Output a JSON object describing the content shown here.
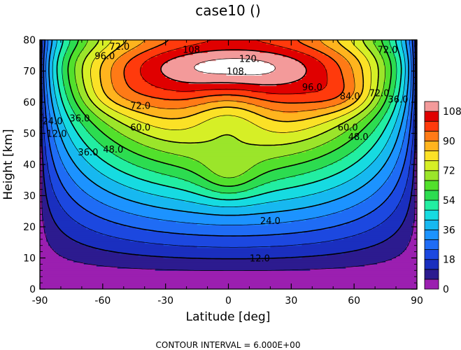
{
  "chart_data": {
    "type": "heatmap",
    "subtype": "filled-contour",
    "title": "case10 ()",
    "xlabel": "Latitude [deg]",
    "ylabel": "Height [km]",
    "xlim": [
      -90,
      90
    ],
    "ylim": [
      0,
      80
    ],
    "x_ticks": [
      "-90",
      "-60",
      "-30",
      "0",
      "30",
      "60",
      "90"
    ],
    "y_ticks": [
      "0",
      "10",
      "20",
      "30",
      "40",
      "50",
      "60",
      "70",
      "80"
    ],
    "contour_interval_text": "CONTOUR INTERVAL = 6.000E+00",
    "colorbar": {
      "min": 0,
      "max": 114,
      "step": 6,
      "tick_labels": [
        "0",
        "18",
        "36",
        "54",
        "72",
        "90",
        "108"
      ],
      "colors": [
        "#9b1fb0",
        "#2c1b8f",
        "#1a2fbf",
        "#1c48e0",
        "#1f6cf5",
        "#1c93ff",
        "#17b8f0",
        "#16dbe1",
        "#22eea2",
        "#2cdc50",
        "#52e02c",
        "#9be52a",
        "#d6ef26",
        "#fbe126",
        "#ffb41e",
        "#ff7a16",
        "#ff3a0c",
        "#e00000",
        "#f39a9a"
      ],
      "overflow_color": "#ffffff"
    },
    "contour_labels": [
      {
        "text": "12.0",
        "lat": 15,
        "height": 10
      },
      {
        "text": "24.0",
        "lat": 20,
        "height": 22
      },
      {
        "text": "36.0",
        "lat": -71,
        "height": 55
      },
      {
        "text": "36.0",
        "lat": -67,
        "height": 44
      },
      {
        "text": "36.0",
        "lat": 81,
        "height": 61
      },
      {
        "text": "48.0",
        "lat": -55,
        "height": 45
      },
      {
        "text": "48.0",
        "lat": 62,
        "height": 49
      },
      {
        "text": "60.0",
        "lat": -42,
        "height": 52
      },
      {
        "text": "60.0",
        "lat": 57,
        "height": 52
      },
      {
        "text": "72.0",
        "lat": -42,
        "height": 59
      },
      {
        "text": "72.0",
        "lat": 72,
        "height": 63
      },
      {
        "text": "84.0",
        "lat": 58,
        "height": 62
      },
      {
        "text": "96.0",
        "lat": -59,
        "height": 75
      },
      {
        "text": "96.0",
        "lat": 40,
        "height": 65
      },
      {
        "text": "108.",
        "lat": 4,
        "height": 70
      },
      {
        "text": "108.",
        "lat": -17,
        "height": 77
      },
      {
        "text": "120.",
        "lat": 10,
        "height": 74
      },
      {
        "text": "24.0",
        "lat": -84,
        "height": 54
      },
      {
        "text": "12.0",
        "lat": -82,
        "height": 50
      },
      {
        "text": "72.0",
        "lat": -52,
        "height": 78
      },
      {
        "text": "72.0",
        "lat": 76,
        "height": 77
      }
    ]
  }
}
